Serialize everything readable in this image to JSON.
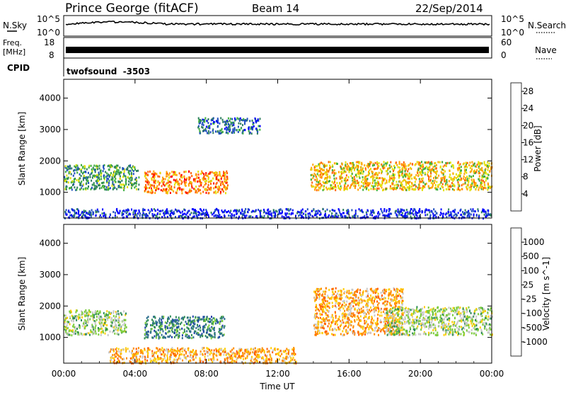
{
  "header": {
    "station": "Prince George (fitACF)",
    "beam": "Beam 14",
    "date": "22/Sep/2014"
  },
  "strip_labels": {
    "nsky": "N.Sky",
    "nsky_ticks": [
      "10^5",
      "10^0"
    ],
    "nsearch": "N.Search",
    "nsearch_ticks": [
      "10^5",
      "10^0"
    ],
    "freq_top": "Freq.",
    "freq_unit": "[MHz]",
    "freq_ticks": [
      "18",
      "8"
    ],
    "nave": "Nave",
    "nave_ticks": [
      "60",
      "0"
    ],
    "cpid": "CPID",
    "cpid_value": "twofsound  -3503"
  },
  "colors": {
    "power_scale": [
      "#0000ff",
      "#1f4fbf",
      "#2f7f5f",
      "#3faf3f",
      "#e0e000",
      "#ffa500",
      "#ff6000",
      "#ff0000"
    ],
    "velocity_scale": [
      "#1b3fa8",
      "#2f6f8f",
      "#2e8b57",
      "#7ccd3c",
      "#c8c8c8",
      "#ffcc00",
      "#ff8c00",
      "#ff5a00",
      "#ff0000"
    ],
    "ground": "#b0b0b0"
  },
  "chart_data": [
    {
      "type": "heatmap",
      "name": "power",
      "xlabel": "Time UT",
      "ylabel": "Slant Range [km]",
      "x_ticks": [
        "00:00",
        "04:00",
        "08:00",
        "12:00",
        "16:00",
        "20:00",
        "00:00"
      ],
      "xlim_hours": [
        0,
        24
      ],
      "ylim": [
        180,
        4600
      ],
      "y_ticks": [
        1000,
        2000,
        3000,
        4000
      ],
      "colorbar_label": "Power [dB]",
      "colorbar_ticks": [
        4,
        8,
        12,
        16,
        20,
        24,
        28
      ],
      "colorbar_range": [
        0,
        30
      ],
      "regions": [
        {
          "t": [
            0,
            4.2
          ],
          "r": [
            1100,
            1900
          ],
          "value": 14
        },
        {
          "t": [
            4.5,
            9.2
          ],
          "r": [
            1000,
            1700
          ],
          "value": 26
        },
        {
          "t": [
            13.8,
            24
          ],
          "r": [
            1100,
            2000
          ],
          "value": 22
        },
        {
          "t": [
            7.5,
            11
          ],
          "r": [
            2900,
            3400
          ],
          "value": 8
        },
        {
          "t": [
            0,
            24
          ],
          "r": [
            200,
            500
          ],
          "value": 6
        }
      ]
    },
    {
      "type": "heatmap",
      "name": "velocity",
      "xlabel": "Time UT",
      "ylabel": "Slant Range [km]",
      "x_ticks": [
        "00:00",
        "04:00",
        "08:00",
        "12:00",
        "16:00",
        "20:00",
        "00:00"
      ],
      "xlim_hours": [
        0,
        24
      ],
      "ylim": [
        180,
        4600
      ],
      "y_ticks": [
        1000,
        2000,
        3000,
        4000
      ],
      "colorbar_label": "Velocity [m s^-1]",
      "colorbar_ticks": [
        "1000",
        "500",
        "100",
        "25",
        "-25",
        "-100",
        "-500",
        "-1000"
      ],
      "regions": [
        {
          "t": [
            0,
            3.5
          ],
          "r": [
            1100,
            1900
          ],
          "value": 0
        },
        {
          "t": [
            4.5,
            9
          ],
          "r": [
            1000,
            1700
          ],
          "value": 200
        },
        {
          "t": [
            14,
            19
          ],
          "r": [
            1100,
            2600
          ],
          "value": -300
        },
        {
          "t": [
            18,
            24
          ],
          "r": [
            1100,
            2000
          ],
          "value": 0
        },
        {
          "t": [
            2.5,
            13
          ],
          "r": [
            200,
            700
          ],
          "value": -150
        }
      ]
    }
  ]
}
